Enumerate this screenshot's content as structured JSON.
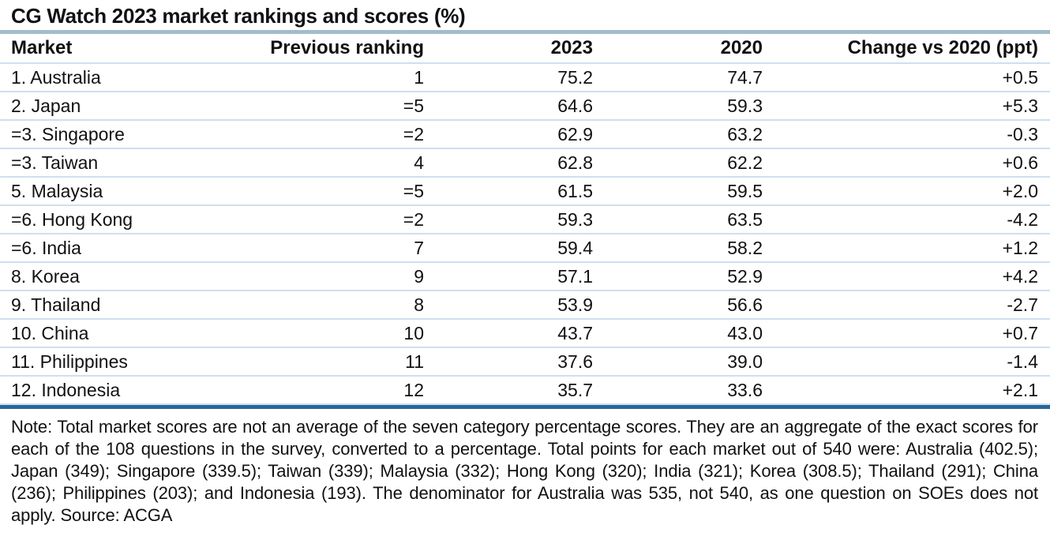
{
  "chart_data": {
    "type": "table",
    "title": "CG Watch 2023 market rankings and scores (%)",
    "columns": [
      "Market",
      "Previous ranking",
      "2023",
      "2020",
      "Change vs 2020 (ppt)"
    ],
    "rows": [
      [
        "1. Australia",
        "1",
        "75.2",
        "74.7",
        "+0.5"
      ],
      [
        "2. Japan",
        "=5",
        "64.6",
        "59.3",
        "+5.3"
      ],
      [
        "=3. Singapore",
        "=2",
        "62.9",
        "63.2",
        "-0.3"
      ],
      [
        "=3. Taiwan",
        "4",
        "62.8",
        "62.2",
        "+0.6"
      ],
      [
        "5. Malaysia",
        "=5",
        "61.5",
        "59.5",
        "+2.0"
      ],
      [
        "=6. Hong Kong",
        "=2",
        "59.3",
        "63.5",
        "-4.2"
      ],
      [
        "=6. India",
        "7",
        "59.4",
        "58.2",
        "+1.2"
      ],
      [
        "8. Korea",
        "9",
        "57.1",
        "52.9",
        "+4.2"
      ],
      [
        "9. Thailand",
        "8",
        "53.9",
        "56.6",
        "-2.7"
      ],
      [
        "10. China",
        "10",
        "43.7",
        "43.0",
        "+0.7"
      ],
      [
        "11. Philippines",
        "11",
        "37.6",
        "39.0",
        "-1.4"
      ],
      [
        "12. Indonesia",
        "12",
        "35.7",
        "33.6",
        "+2.1"
      ]
    ],
    "note": "Note: Total market scores are not an average of the seven category percentage scores. They are an aggregate of the exact scores for each of the 108 questions in the survey, converted to a percentage. Total points for each market out of 540 were: Australia (402.5); Japan (349); Singapore (339.5); Taiwan (339); Malaysia (332); Hong Kong (320); India (321); Korea (308.5); Thailand (291); China (236); Philippines (203); and Indonesia (193). The denominator for Australia was 535, not 540, as one question on SOEs does not apply. Source: ACGA",
    "source": "ACGA"
  },
  "colors": {
    "title_rule": "#a3bcca",
    "row_rule": "#cfdfee",
    "bottom_rule": "#26679a",
    "text": "#111111"
  }
}
